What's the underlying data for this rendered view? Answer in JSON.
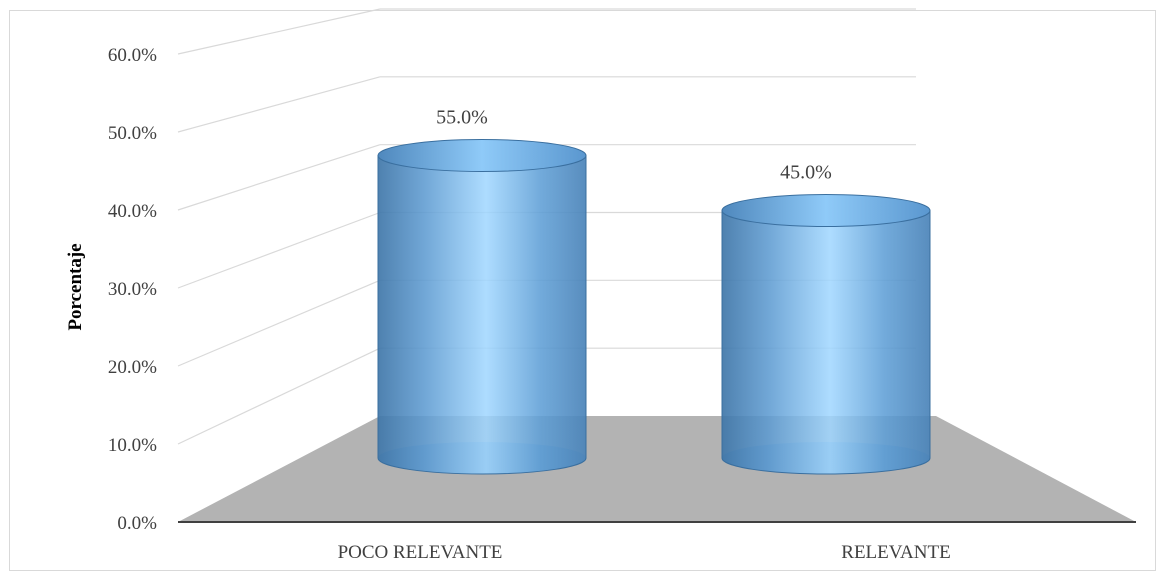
{
  "chart_data": {
    "type": "bar",
    "style": "3d-cylinder",
    "categories": [
      "POCO RELEVANTE",
      "RELEVANTE"
    ],
    "values": [
      55.0,
      45.0
    ],
    "data_labels": [
      "55.0%",
      "45.0%"
    ],
    "title": "",
    "xlabel": "",
    "ylabel": "Porcentaje",
    "ylim": [
      0,
      60
    ],
    "yticks": [
      0,
      10,
      20,
      30,
      40,
      50,
      60
    ],
    "ytick_labels": [
      "0.0%",
      "10.0%",
      "20.0%",
      "30.0%",
      "40.0%",
      "50.0%",
      "60.0%"
    ],
    "grid": true,
    "legend": "none",
    "colors": {
      "bar": "#5b9bd5",
      "floor": "#b3b3b3",
      "gridline": "#d9d9d9"
    }
  }
}
